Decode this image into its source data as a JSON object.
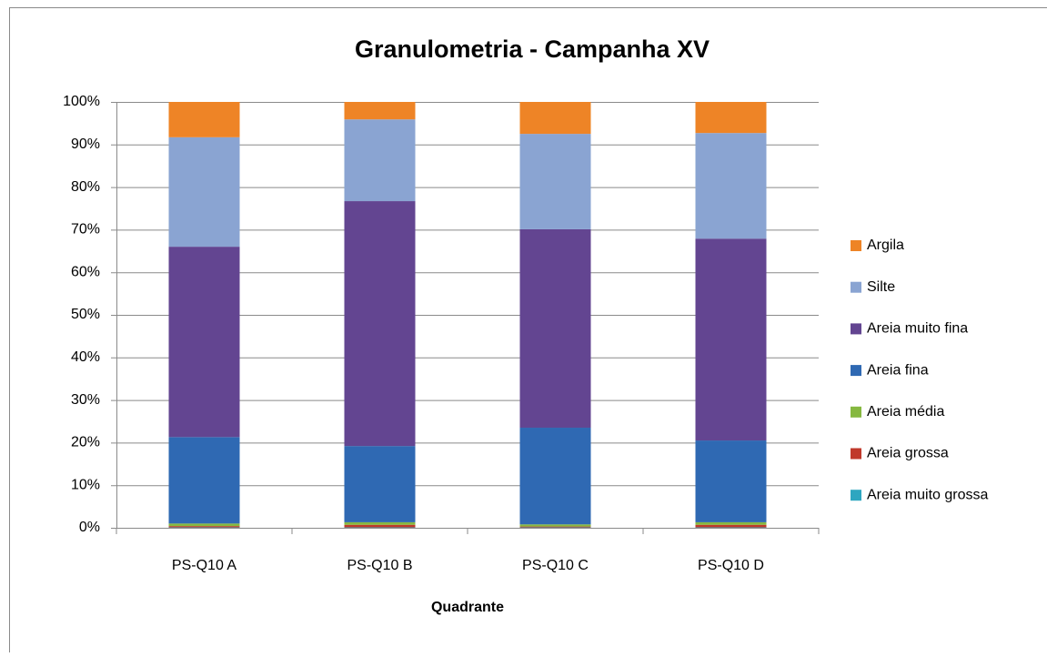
{
  "chart_data": {
    "type": "stacked_bar_100",
    "title": "Granulometria - Campanha XV",
    "x_label": "Quadrante",
    "categories": [
      "PS-Q10 A",
      "PS-Q10 B",
      "PS-Q10 C",
      "PS-Q10 D"
    ],
    "series": [
      {
        "name": "Areia muito grossa",
        "color": "#2ea6c0",
        "values": [
          0.1,
          0.1,
          0.1,
          0.1
        ]
      },
      {
        "name": "Areia grossa",
        "color": "#c0392b",
        "values": [
          0.3,
          0.6,
          0.2,
          0.6
        ]
      },
      {
        "name": "Areia média",
        "color": "#86b840",
        "values": [
          0.6,
          0.6,
          0.5,
          0.6
        ]
      },
      {
        "name": "Areia fina",
        "color": "#2f69b3",
        "values": [
          20.3,
          17.9,
          22.7,
          19.2
        ]
      },
      {
        "name": "Areia muito fina",
        "color": "#634591",
        "values": [
          44.7,
          57.5,
          46.6,
          47.4
        ]
      },
      {
        "name": "Silte",
        "color": "#8aa4d2",
        "values": [
          25.7,
          19.2,
          22.4,
          24.8
        ]
      },
      {
        "name": "Argila",
        "color": "#ee8426",
        "values": [
          8.3,
          4.1,
          7.5,
          7.3
        ]
      }
    ],
    "ylim": [
      0,
      100
    ],
    "yticks": [
      {
        "value": 0,
        "label": "0%"
      },
      {
        "value": 10,
        "label": "10%"
      },
      {
        "value": 20,
        "label": "20%"
      },
      {
        "value": 30,
        "label": "30%"
      },
      {
        "value": 40,
        "label": "40%"
      },
      {
        "value": 50,
        "label": "50%"
      },
      {
        "value": 60,
        "label": "60%"
      },
      {
        "value": 70,
        "label": "70%"
      },
      {
        "value": 80,
        "label": "80%"
      },
      {
        "value": 90,
        "label": "90%"
      },
      {
        "value": 100,
        "label": "100%"
      }
    ],
    "grid": true,
    "legend": "right"
  }
}
